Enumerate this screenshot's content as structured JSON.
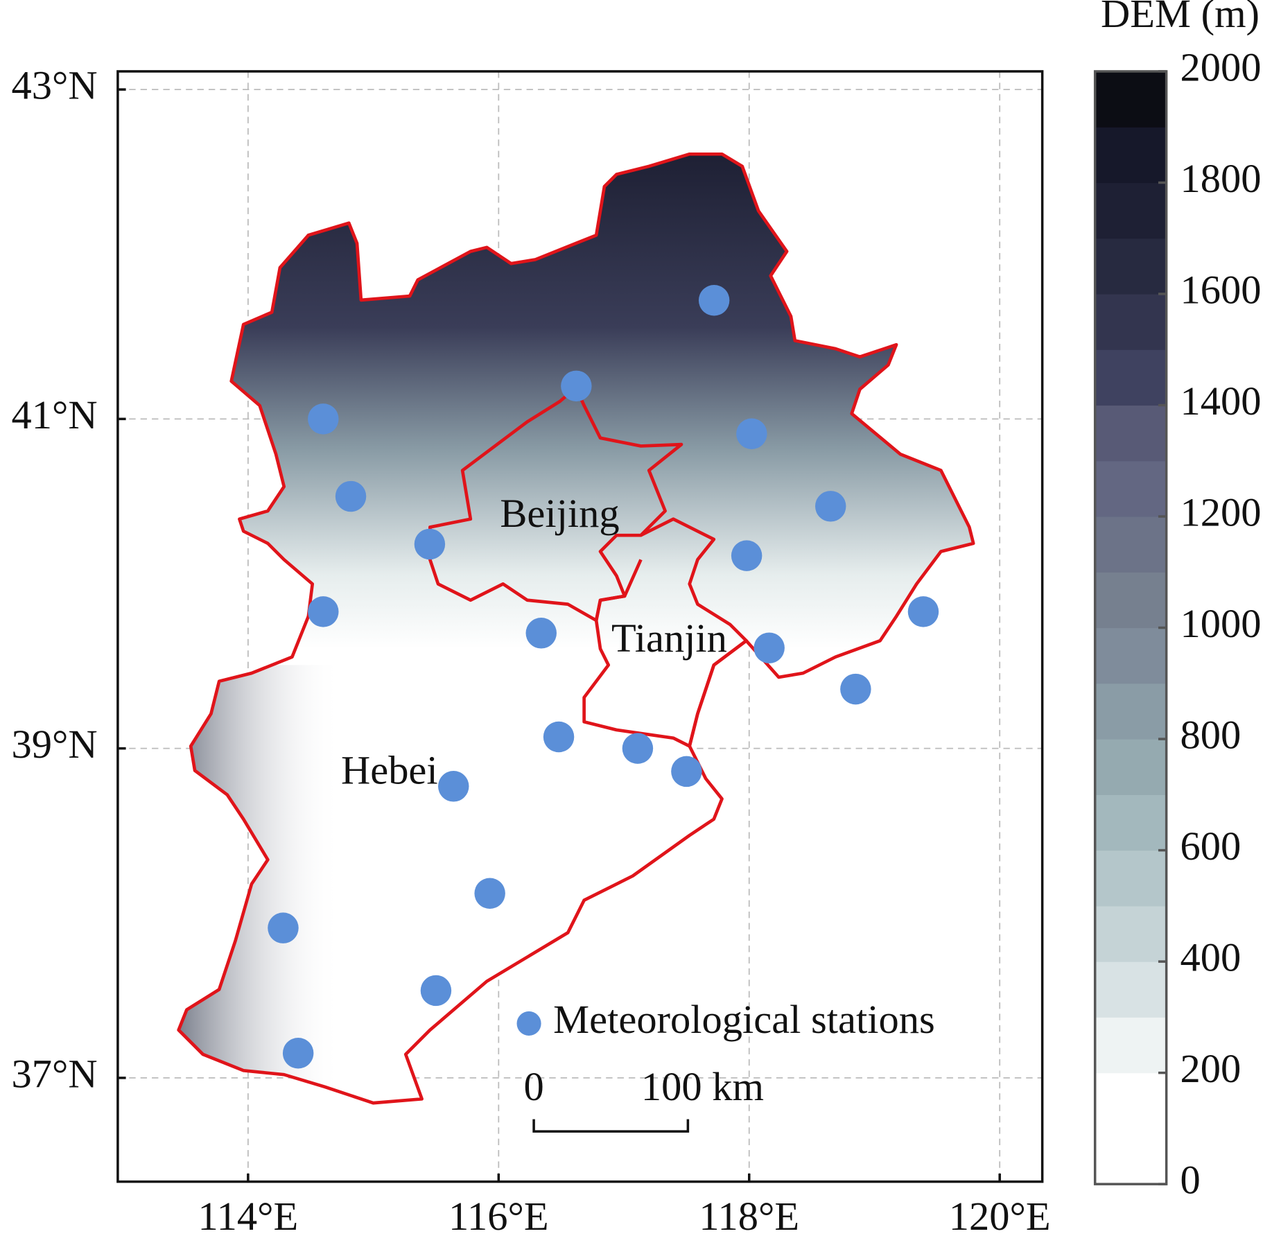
{
  "chart_data": {
    "type": "map",
    "xlim": [
      112.96,
      120.34
    ],
    "ylim": [
      36.37,
      43.11
    ],
    "xticks": [
      {
        "value": 114,
        "label": "114°E"
      },
      {
        "value": 116,
        "label": "116°E"
      },
      {
        "value": 118,
        "label": "118°E"
      },
      {
        "value": 120,
        "label": "120°E"
      }
    ],
    "yticks": [
      {
        "value": 37,
        "label": "37°N"
      },
      {
        "value": 39,
        "label": "39°N"
      },
      {
        "value": 41,
        "label": "41°N"
      },
      {
        "value": 43,
        "label": "43°N"
      }
    ],
    "grid": true,
    "regions": [
      "Beijing",
      "Tianjin",
      "Hebei"
    ],
    "stations": {
      "name": "Meteorological stations",
      "color": "#5b8fd8",
      "lon": [
        117.72,
        116.62,
        114.6,
        118.02,
        114.82,
        118.65,
        115.45,
        117.98,
        119.39,
        114.6,
        116.34,
        118.16,
        118.85,
        116.48,
        117.11,
        117.5,
        115.64,
        115.93,
        114.28,
        115.5,
        114.4
      ],
      "lat": [
        41.72,
        41.2,
        41.0,
        40.91,
        40.53,
        40.47,
        40.24,
        40.17,
        39.83,
        39.83,
        39.7,
        39.61,
        39.36,
        39.07,
        39.0,
        38.86,
        38.77,
        38.12,
        37.91,
        37.53,
        37.15
      ]
    },
    "scale_bar": {
      "start": "0",
      "end": "100 km"
    },
    "colorbar": {
      "title": "DEM (m)",
      "lim": [
        0,
        2000
      ],
      "ticks": [
        0,
        200,
        400,
        600,
        800,
        1000,
        1200,
        1400,
        1600,
        1800,
        2000
      ],
      "colors": [
        "#ffffff",
        "#ffffff",
        "#eef3f3",
        "#d8e2e4",
        "#c5d3d6",
        "#b4c6ca",
        "#a3b8bd",
        "#95aab0",
        "#8a9ca6",
        "#7f8c9b",
        "#76808f",
        "#6c7388",
        "#636782",
        "#585a76",
        "#3f4260",
        "#33354f",
        "#272a40",
        "#1e2034",
        "#16182a",
        "#0c0d14"
      ]
    }
  }
}
